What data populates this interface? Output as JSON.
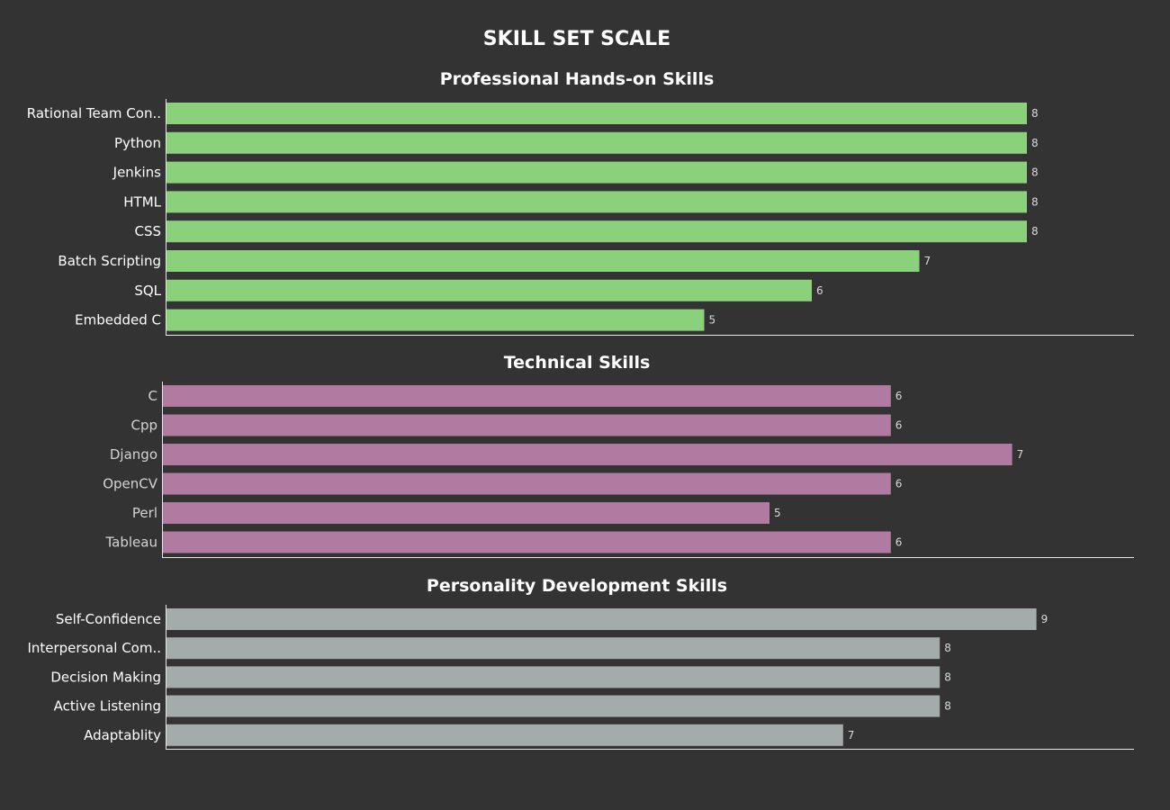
{
  "chart_data": {
    "type": "bar",
    "orientation": "horizontal",
    "title": "SKILL SET SCALE",
    "grid": false,
    "xlim": [
      0,
      9
    ],
    "panels": [
      {
        "title": "Professional Hands-on Skills",
        "color": "#8bd17c",
        "categories": [
          "Rational Team Con..",
          "Python",
          "Jenkins",
          "HTML",
          "CSS",
          "Batch Scripting",
          "SQL",
          "Embedded C"
        ],
        "values": [
          8,
          8,
          8,
          8,
          8,
          7,
          6,
          5
        ]
      },
      {
        "title": "Technical Skills",
        "color": "#b07aa1",
        "categories": [
          "C",
          "Cpp",
          "Django",
          "OpenCV",
          "Perl",
          "Tableau"
        ],
        "values": [
          6,
          6,
          7,
          6,
          5,
          6
        ]
      },
      {
        "title": "Personality Development Skills",
        "color": "#a3acab",
        "categories": [
          "Self-Confidence",
          "Interpersonal Com..",
          "Decision Making",
          "Active Listening",
          "Adaptablity"
        ],
        "values": [
          9,
          8,
          8,
          8,
          7
        ]
      }
    ]
  }
}
